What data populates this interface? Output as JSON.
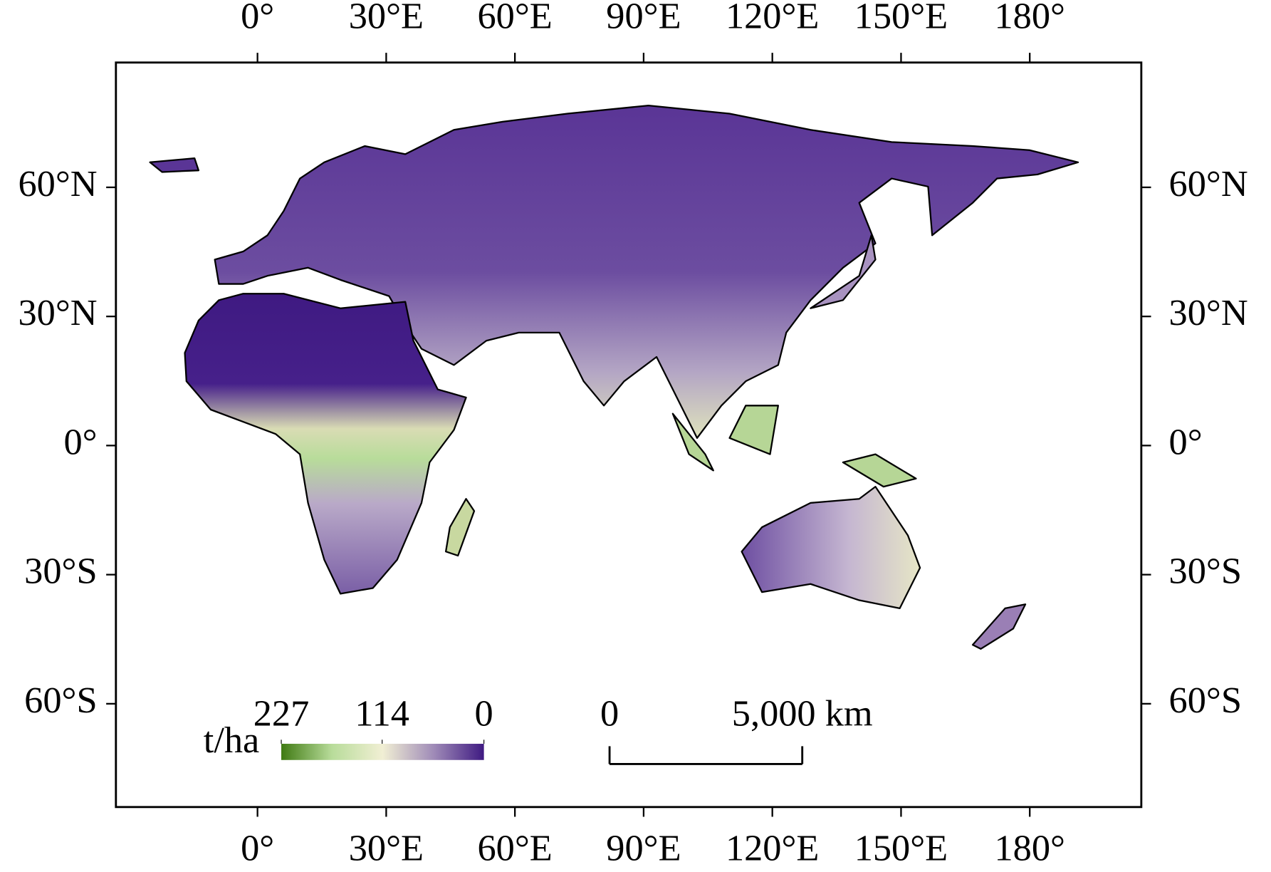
{
  "map": {
    "xlim": [
      -33,
      206
    ],
    "ylim": [
      -84,
      89
    ],
    "xticks": [
      {
        "value": 0,
        "label": "0°"
      },
      {
        "value": 30,
        "label": "30°E"
      },
      {
        "value": 60,
        "label": "60°E"
      },
      {
        "value": 90,
        "label": "90°E"
      },
      {
        "value": 120,
        "label": "120°E"
      },
      {
        "value": 150,
        "label": "150°E"
      },
      {
        "value": 180,
        "label": "180°"
      }
    ],
    "yticks": [
      {
        "value": 60,
        "label": "60°N"
      },
      {
        "value": 30,
        "label": "30°N"
      },
      {
        "value": 0,
        "label": "0°"
      },
      {
        "value": -30,
        "label": "30°S"
      },
      {
        "value": -60,
        "label": "60°S"
      }
    ],
    "colorbar": {
      "label": "t/ha",
      "range": [
        227,
        0
      ],
      "ticks": [
        227,
        114,
        0
      ],
      "colors": [
        "#3f7a12",
        "#b8dc9a",
        "#f1efd4",
        "#a08cb8",
        "#3f1a82"
      ]
    },
    "scale_bar": {
      "ticks": [
        0,
        {
          "value": 5000,
          "label": "5,000 km"
        }
      ]
    }
  }
}
